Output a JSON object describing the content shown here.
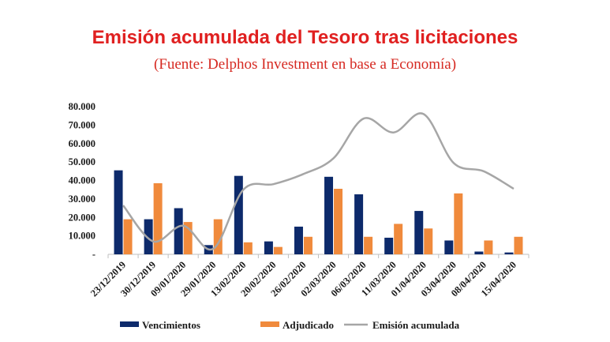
{
  "chart_data": {
    "type": "bar",
    "title": "Emisión acumulada del Tesoro tras licitaciones",
    "subtitle": "(Fuente: Delphos Investment en base a Economía)",
    "categories": [
      "23/12/2019",
      "30/12/2019",
      "09/01/2020",
      "29/01/2020",
      "13/02/2020",
      "20/02/2020",
      "26/02/2020",
      "02/03/2020",
      "06/03/2020",
      "11/03/2020",
      "01/04/2020",
      "03/04/2020",
      "08/04/2020",
      "15/04/2020"
    ],
    "y_ticks": [
      "-",
      "10.000",
      "20.000",
      "30.000",
      "40.000",
      "50.000",
      "60.000",
      "70.000",
      "80.000"
    ],
    "ylim": [
      0,
      80000
    ],
    "series": [
      {
        "name": "Vencimientos",
        "type": "bar",
        "color": "#0d2a6b",
        "values": [
          45500,
          19000,
          25000,
          5000,
          42500,
          7000,
          15000,
          42000,
          32500,
          9000,
          23500,
          7500,
          1500,
          1000
        ]
      },
      {
        "name": "Adjudicado",
        "type": "bar",
        "color": "#f08a3c",
        "values": [
          19000,
          38500,
          17500,
          19000,
          6500,
          4000,
          9500,
          35500,
          9500,
          16500,
          14000,
          33000,
          7500,
          9500
        ]
      },
      {
        "name": "Emisión acumulada",
        "type": "line",
        "color": "#a6a6a6",
        "values": [
          26500,
          7000,
          15500,
          3000,
          35000,
          38000,
          43500,
          52000,
          73500,
          66000,
          76000,
          49500,
          45000,
          35500
        ]
      }
    ],
    "legend_position": "bottom",
    "grid": false
  }
}
